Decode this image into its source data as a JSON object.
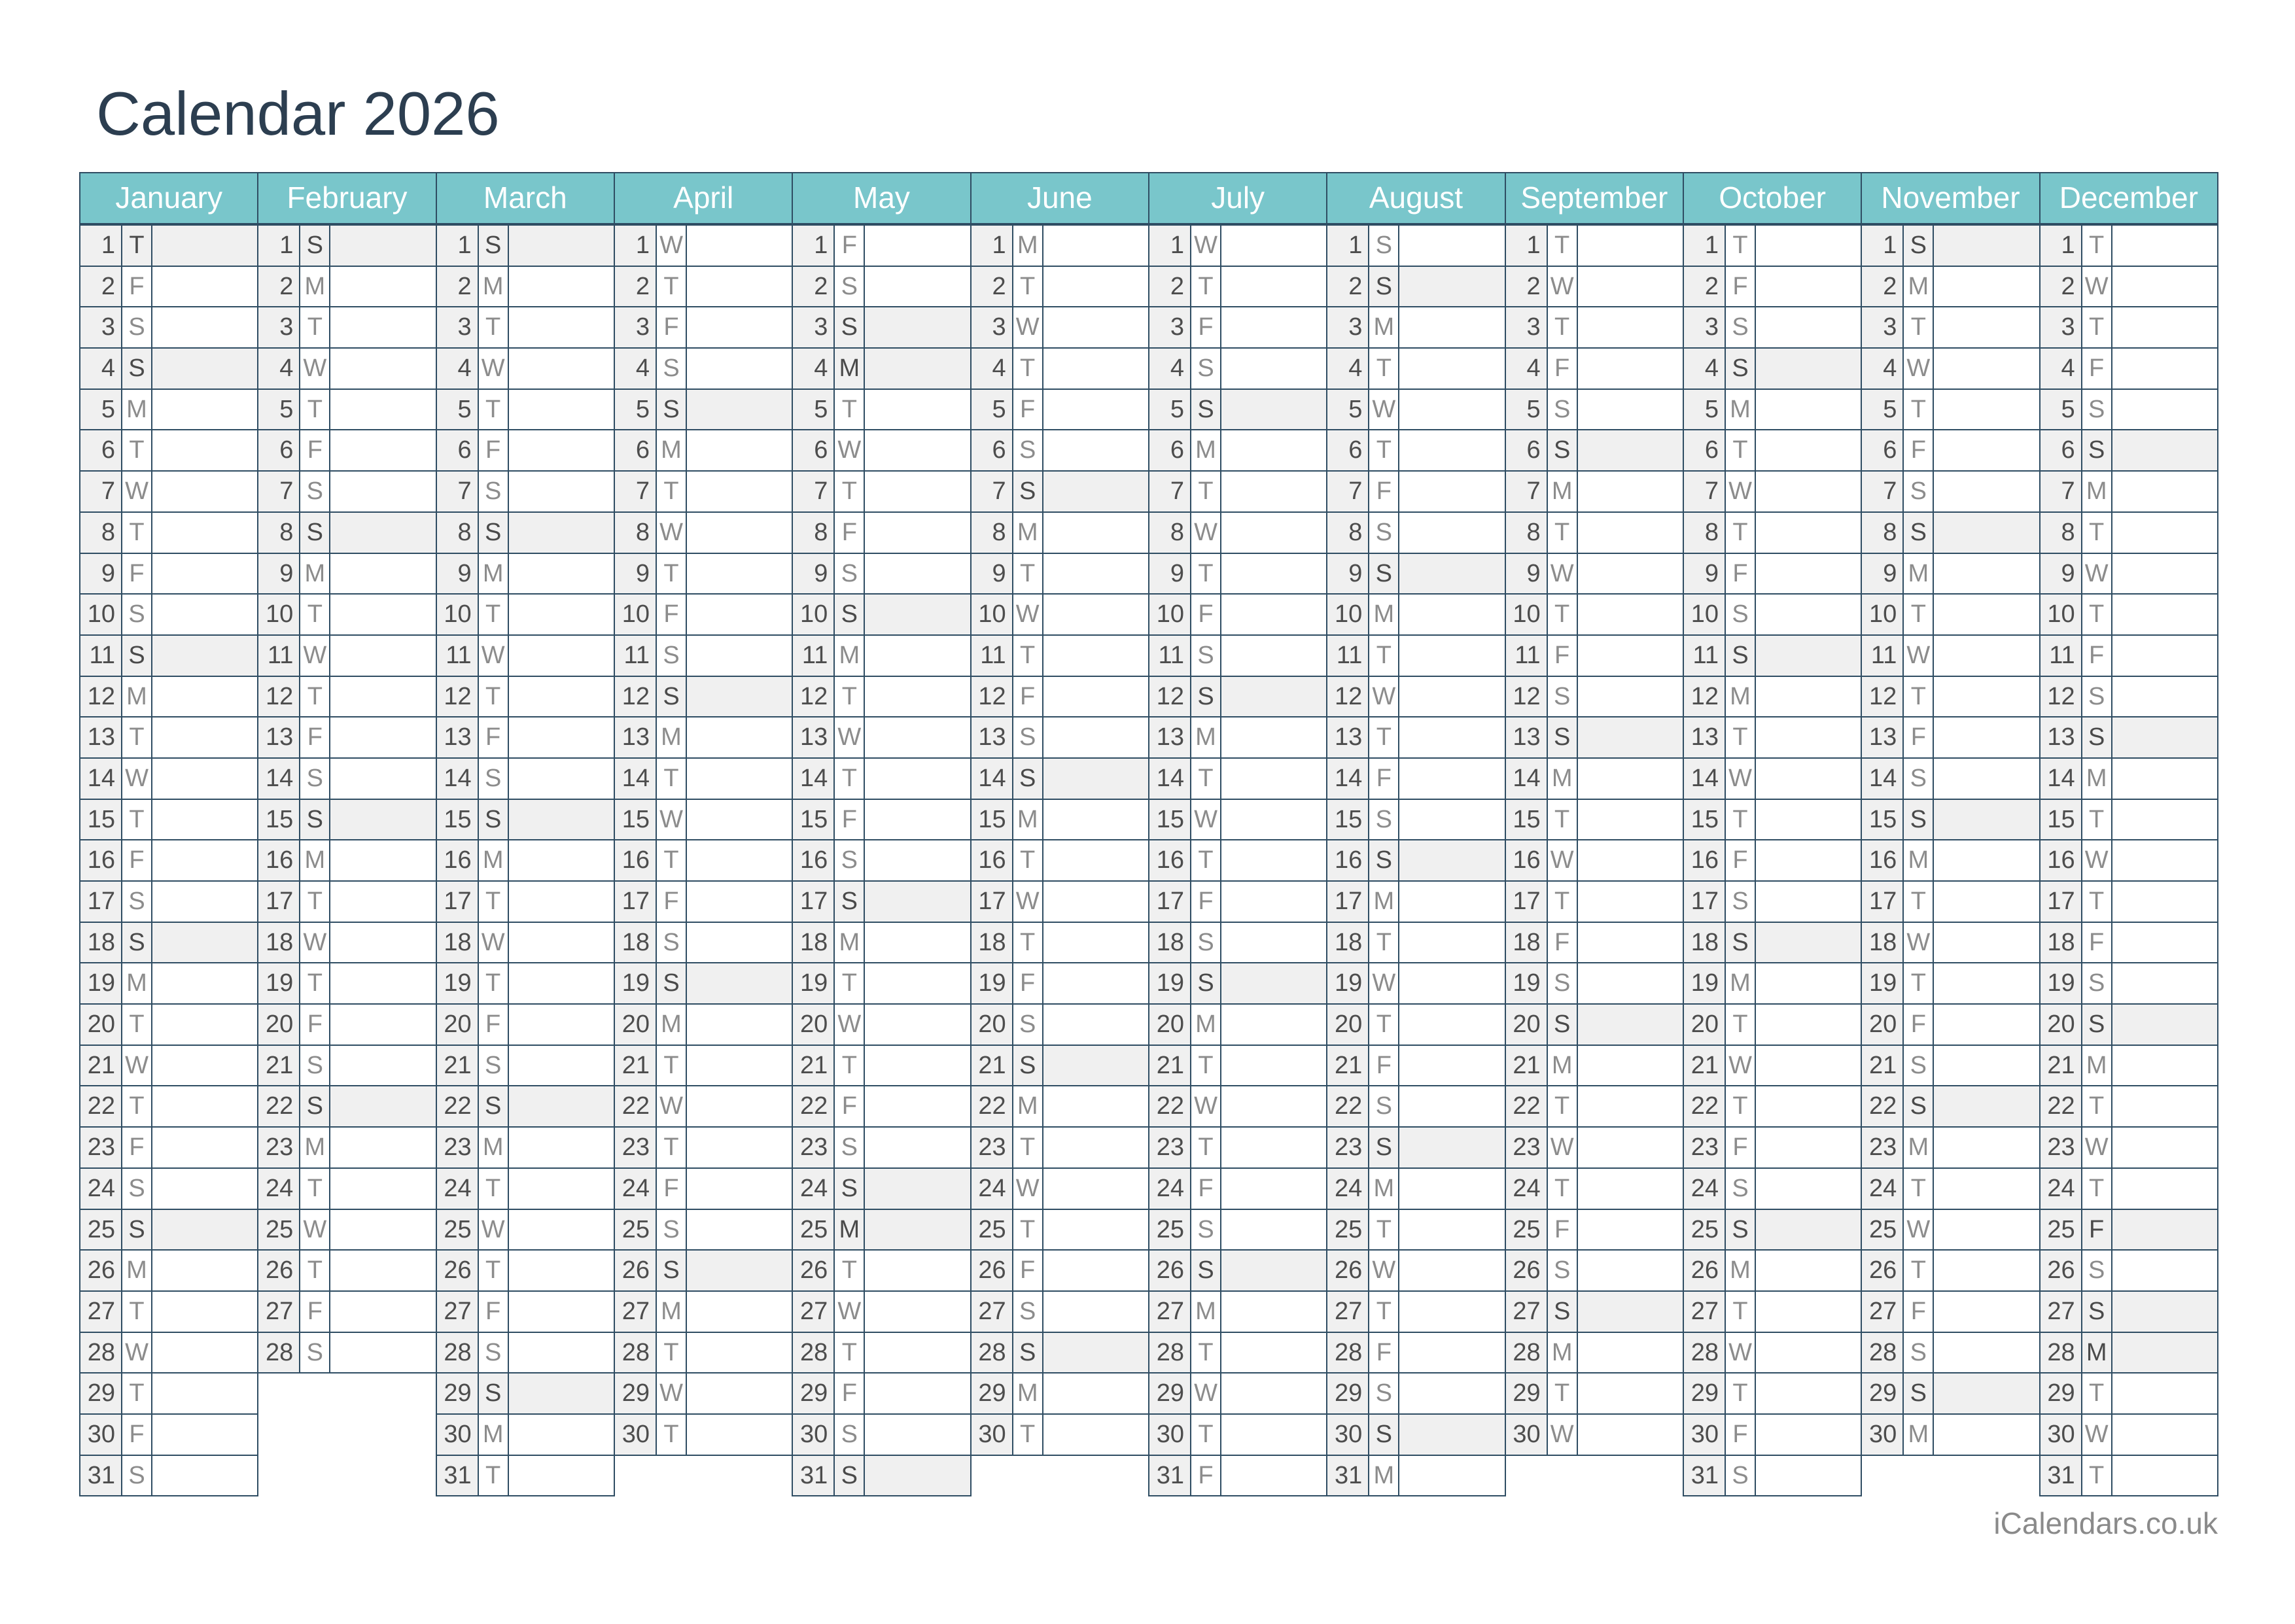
{
  "page": {
    "title": "Calendar 2026",
    "footer": "iCalendars.co.uk"
  },
  "colors": {
    "header_teal": "#79C6CB",
    "grid_border": "#2F4D63",
    "title_text": "#2C3E50",
    "shaded_row_bg": "#F0F0F0",
    "number_cell_bg": "#F0F0F0",
    "day_number_text": "#4D4D4D",
    "weekday_letter_text": "#8C8C8C",
    "shaded_letter_text": "#4A4A4A",
    "month_label_text": "#FFFFFF",
    "footer_text": "#8A8A8A"
  },
  "calendar": {
    "year": "2026",
    "months": [
      {
        "name": "January",
        "letters": "TFSSMTWTFSSMTWTFSSMTWTFSSMTWTFS",
        "shaded": [
          1,
          4,
          11,
          18,
          25
        ]
      },
      {
        "name": "February",
        "letters": "SMTWTFSSMTWTFSSMTWTFSSMTWTFS",
        "shaded": [
          1,
          8,
          15,
          22
        ]
      },
      {
        "name": "March",
        "letters": "SMTWTFSSMTWTFSSMTWTFSSMTWTFSSMT",
        "shaded": [
          1,
          8,
          15,
          22,
          29
        ]
      },
      {
        "name": "April",
        "letters": "WTFSSMTWTFSSMTWTFSSMTWTFSSMTWT",
        "shaded": [
          5,
          12,
          19,
          26
        ]
      },
      {
        "name": "May",
        "letters": "FSSMTWTFSSMTWTFSSMTWTFSSMTWTFSS",
        "shaded": [
          3,
          4,
          10,
          17,
          24,
          25,
          31
        ]
      },
      {
        "name": "June",
        "letters": "MTWTFSSMTWTFSSMTWTFSSMTWTFSSMT",
        "shaded": [
          7,
          14,
          21,
          28
        ]
      },
      {
        "name": "July",
        "letters": "WTFSSMTWTFSSMTWTFSSMTWTFSSMTWTF",
        "shaded": [
          5,
          12,
          19,
          26
        ]
      },
      {
        "name": "August",
        "letters": "SSMTWTFSSMTWTFSSMTWTFSSMTWTFSSM",
        "shaded": [
          2,
          9,
          16,
          23,
          30
        ]
      },
      {
        "name": "September",
        "letters": "TWTFSSMTWTFSSMTWTFSSMTWTFSSMTW",
        "shaded": [
          6,
          13,
          20,
          27
        ]
      },
      {
        "name": "October",
        "letters": "TFSSMTWTFSSMTWTFSSMTWTFSSMTWTFS",
        "shaded": [
          4,
          11,
          18,
          25
        ]
      },
      {
        "name": "November",
        "letters": "SMTWTFSSMTWTFSSMTWTFSSMTWTFSSM",
        "shaded": [
          1,
          8,
          15,
          22,
          29
        ]
      },
      {
        "name": "December",
        "letters": "TWTFSSMTWTFSSMTWTFSSMTWTFSSMTWT",
        "shaded": [
          6,
          13,
          20,
          25,
          27,
          28
        ]
      }
    ]
  }
}
